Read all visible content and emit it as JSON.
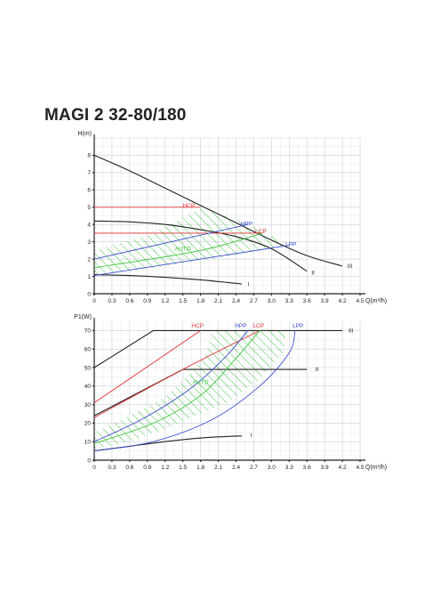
{
  "title": "MAGI 2 32-80/180",
  "colors": {
    "speed": "#222222",
    "hcp": "#e03232",
    "lcp": "#e03232",
    "hpp": "#3c4fd0",
    "lpp": "#3c4fd0",
    "auto": "#3bc43b"
  },
  "chart_data": [
    {
      "type": "line",
      "name": "head",
      "xlabel": "Q(m³/h)",
      "ylabel": "H(m)",
      "xlim": [
        0,
        4.5
      ],
      "ylim": [
        0,
        9
      ],
      "x_ticks": [
        "0",
        "0.3",
        "0.6",
        "0.9",
        "1.2",
        "1.5",
        "1.8",
        "2.1",
        "2.4",
        "2.7",
        "3.0",
        "3.3",
        "3.6",
        "3.9",
        "4.2",
        "4.5"
      ],
      "y_ticks": [
        "0",
        "1",
        "2",
        "3",
        "4",
        "5",
        "6",
        "7",
        "8"
      ],
      "grid": true,
      "series": [
        {
          "name": "III",
          "role": "speed",
          "points": [
            [
              0,
              8.0
            ],
            [
              0.6,
              7.1
            ],
            [
              1.2,
              6.1
            ],
            [
              1.8,
              5.1
            ],
            [
              2.4,
              4.1
            ],
            [
              3.0,
              3.1
            ],
            [
              3.6,
              2.2
            ],
            [
              4.2,
              1.6
            ]
          ],
          "label_at": [
            4.24,
            1.6
          ]
        },
        {
          "name": "II",
          "role": "speed",
          "points": [
            [
              0,
              4.2
            ],
            [
              0.6,
              4.15
            ],
            [
              1.2,
              4.0
            ],
            [
              1.8,
              3.7
            ],
            [
              2.4,
              3.3
            ],
            [
              3.0,
              2.6
            ],
            [
              3.6,
              1.3
            ]
          ],
          "label_at": [
            3.63,
            1.2
          ]
        },
        {
          "name": "I",
          "role": "speed",
          "points": [
            [
              0,
              1.1
            ],
            [
              0.6,
              1.05
            ],
            [
              1.2,
              0.95
            ],
            [
              1.8,
              0.8
            ],
            [
              2.4,
              0.6
            ],
            [
              2.5,
              0.55
            ]
          ],
          "label_at": [
            2.55,
            0.55
          ]
        },
        {
          "name": "HCP",
          "role": "hcp",
          "points": [
            [
              0,
              5.0
            ],
            [
              1.8,
              5.0
            ]
          ],
          "label_at": [
            1.6,
            5.1
          ]
        },
        {
          "name": "LCP",
          "role": "lcp",
          "points": [
            [
              0,
              3.5
            ],
            [
              2.85,
              3.5
            ]
          ],
          "label_at": [
            2.82,
            3.6
          ]
        },
        {
          "name": "HPP",
          "role": "hpp",
          "points": [
            [
              0,
              2.0
            ],
            [
              2.6,
              4.0
            ]
          ],
          "label_at": [
            2.58,
            4.05
          ]
        },
        {
          "name": "LPP",
          "role": "lpp",
          "points": [
            [
              0,
              1.05
            ],
            [
              3.3,
              2.8
            ]
          ],
          "label_at": [
            3.33,
            2.85
          ]
        },
        {
          "name": "AUTO",
          "role": "auto",
          "points": [
            [
              0,
              1.5
            ],
            [
              1.8,
              2.5
            ],
            [
              2.85,
              3.5
            ]
          ],
          "label_at": [
            1.5,
            2.6
          ]
        }
      ],
      "auto_area": [
        [
          0,
          1.1
        ],
        [
          0,
          2.5
        ],
        [
          0.9,
          3.35
        ],
        [
          1.85,
          5.0
        ],
        [
          2.1,
          4.6
        ],
        [
          2.5,
          4.2
        ],
        [
          3.3,
          2.8
        ],
        [
          2.0,
          2.0
        ],
        [
          0.8,
          1.4
        ]
      ]
    },
    {
      "type": "line",
      "name": "power",
      "xlabel": "Q(m³/h)",
      "ylabel": "P1(W)",
      "xlim": [
        0,
        4.5
      ],
      "ylim": [
        0,
        75
      ],
      "x_ticks": [
        "0",
        "0.3",
        "0.6",
        "0.9",
        "1.2",
        "1.5",
        "1.8",
        "2.1",
        "2.4",
        "2.7",
        "3.0",
        "3.3",
        "3.6",
        "3.9",
        "4.2",
        "4.5"
      ],
      "y_ticks": [
        "0",
        "10",
        "20",
        "30",
        "40",
        "50",
        "60",
        "70"
      ],
      "grid": true,
      "series": [
        {
          "name": "III",
          "role": "speed",
          "points": [
            [
              0,
              50
            ],
            [
              1.0,
              70
            ],
            [
              4.2,
              70
            ]
          ],
          "label_at": [
            4.26,
            70
          ]
        },
        {
          "name": "II",
          "role": "speed",
          "points": [
            [
              0,
              24
            ],
            [
              1.5,
              49
            ],
            [
              3.6,
              49
            ]
          ],
          "label_at": [
            3.7,
            49
          ]
        },
        {
          "name": "I",
          "role": "speed",
          "points": [
            [
              0,
              5
            ],
            [
              0.6,
              7.5
            ],
            [
              1.2,
              10
            ],
            [
              1.8,
              12
            ],
            [
              2.4,
              13
            ],
            [
              2.5,
              13
            ]
          ],
          "label_at": [
            2.6,
            13.5
          ]
        },
        {
          "name": "HCP",
          "role": "hcp",
          "points": [
            [
              0,
              31
            ],
            [
              1.8,
              70
            ]
          ],
          "label_at": [
            1.75,
            72.5
          ]
        },
        {
          "name": "LCP",
          "role": "lcp",
          "points": [
            [
              0,
              23
            ],
            [
              1.5,
              49
            ],
            [
              2.8,
              70
            ]
          ],
          "label_at": [
            2.78,
            72.5
          ]
        },
        {
          "name": "HPP",
          "role": "hpp",
          "points": [
            [
              0,
              10
            ],
            [
              0.8,
              22
            ],
            [
              1.6,
              38
            ],
            [
              2.2,
              55
            ],
            [
              2.6,
              70
            ]
          ],
          "label_at": [
            2.48,
            72.5
          ]
        },
        {
          "name": "LPP",
          "role": "lpp",
          "points": [
            [
              0,
              5
            ],
            [
              1.0,
              10
            ],
            [
              2.0,
              22
            ],
            [
              2.8,
              40
            ],
            [
              3.3,
              58
            ],
            [
              3.4,
              70
            ]
          ],
          "label_at": [
            3.45,
            72.5
          ]
        },
        {
          "name": "AUTO",
          "role": "auto",
          "points": [
            [
              0,
              9
            ],
            [
              1.0,
              20
            ],
            [
              1.8,
              35
            ],
            [
              2.4,
              55
            ],
            [
              2.8,
              70
            ]
          ],
          "label_at": [
            1.8,
            42
          ]
        }
      ],
      "auto_area": [
        [
          0,
          6
        ],
        [
          0,
          15
        ],
        [
          0.6,
          24
        ],
        [
          1.2,
          34
        ],
        [
          1.6,
          46
        ],
        [
          1.9,
          58
        ],
        [
          2.0,
          70
        ],
        [
          3.25,
          70
        ],
        [
          3.2,
          58
        ],
        [
          2.8,
          44
        ],
        [
          2.3,
          32
        ],
        [
          1.8,
          25
        ],
        [
          1.2,
          17
        ],
        [
          0.6,
          10
        ]
      ]
    }
  ]
}
